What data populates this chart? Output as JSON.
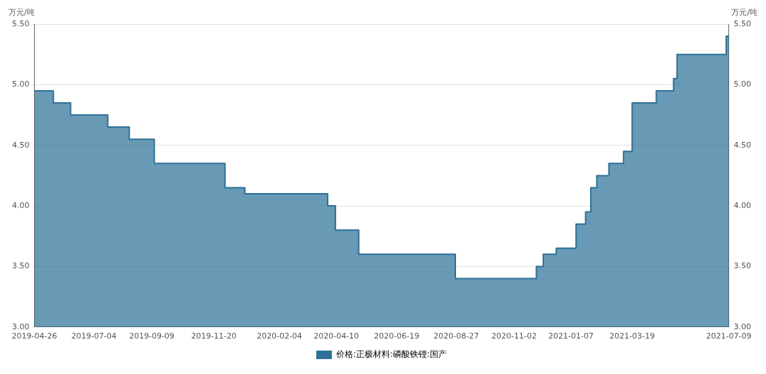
{
  "chart_data": {
    "type": "area",
    "ylabel": "万元/吨",
    "y2label": "万元/吨",
    "x": [
      "2019-04-26",
      "2019-05-18",
      "2019-05-18",
      "2019-06-07",
      "2019-06-07",
      "2019-07-20",
      "2019-07-20",
      "2019-08-14",
      "2019-08-14",
      "2019-09-12",
      "2019-09-12",
      "2019-12-03",
      "2019-12-03",
      "2019-12-26",
      "2019-12-26",
      "2020-03-31",
      "2020-03-31",
      "2020-04-09",
      "2020-04-09",
      "2020-05-06",
      "2020-05-06",
      "2020-08-26",
      "2020-08-26",
      "2020-11-28",
      "2020-11-28",
      "2020-12-06",
      "2020-12-06",
      "2020-12-21",
      "2020-12-21",
      "2021-01-13",
      "2021-01-13",
      "2021-01-24",
      "2021-01-24",
      "2021-01-30",
      "2021-01-30",
      "2021-02-06",
      "2021-02-06",
      "2021-02-20",
      "2021-02-20",
      "2021-03-09",
      "2021-03-09",
      "2021-03-19",
      "2021-03-19",
      "2021-04-16",
      "2021-04-16",
      "2021-05-06",
      "2021-05-06",
      "2021-05-10",
      "2021-05-10",
      "2021-07-06",
      "2021-07-06",
      "2021-07-09"
    ],
    "series": [
      {
        "name": "价格:正极材料:磷酸铁锂:国产",
        "color": "#2e7198",
        "values": [
          4.95,
          4.95,
          4.85,
          4.85,
          4.75,
          4.75,
          4.65,
          4.65,
          4.55,
          4.55,
          4.35,
          4.35,
          4.15,
          4.15,
          4.1,
          4.1,
          4.0,
          4.0,
          3.8,
          3.8,
          3.6,
          3.6,
          3.4,
          3.4,
          3.5,
          3.5,
          3.6,
          3.6,
          3.65,
          3.65,
          3.85,
          3.85,
          3.95,
          3.95,
          4.15,
          4.15,
          4.25,
          4.25,
          4.35,
          4.35,
          4.45,
          4.45,
          4.85,
          4.85,
          4.95,
          4.95,
          5.05,
          5.05,
          5.25,
          5.25,
          5.4,
          5.4
        ]
      }
    ],
    "xlim": [
      "2019-04-26",
      "2021-07-09"
    ],
    "xticks": [
      "2019-04-26",
      "2019-07-04",
      "2019-09-09",
      "2019-11-20",
      "2020-02-04",
      "2020-04-10",
      "2020-06-19",
      "2020-08-27",
      "2020-11-02",
      "2021-01-07",
      "2021-03-19",
      "2021-07-09"
    ],
    "ylim": [
      3,
      5.5
    ],
    "yticks": [
      {
        "value": 3,
        "label": "3.00"
      },
      {
        "value": 3.5,
        "label": "3.50"
      },
      {
        "value": 4,
        "label": "4.00"
      },
      {
        "value": 4.5,
        "label": "4.50"
      },
      {
        "value": 5,
        "label": "5.00"
      },
      {
        "value": 5.5,
        "label": "5.50"
      }
    ],
    "y2lim": [
      3,
      5.5
    ],
    "y2ticks": [
      {
        "value": 3,
        "label": "3.00"
      },
      {
        "value": 3.5,
        "label": "3.50"
      },
      {
        "value": 4,
        "label": "4.00"
      },
      {
        "value": 4.5,
        "label": "4.50"
      },
      {
        "value": 5,
        "label": "5.00"
      },
      {
        "value": 5.5,
        "label": "5.50"
      }
    ],
    "grid": "y",
    "legend": "bottom",
    "marker": "none",
    "line_style": "solid"
  }
}
